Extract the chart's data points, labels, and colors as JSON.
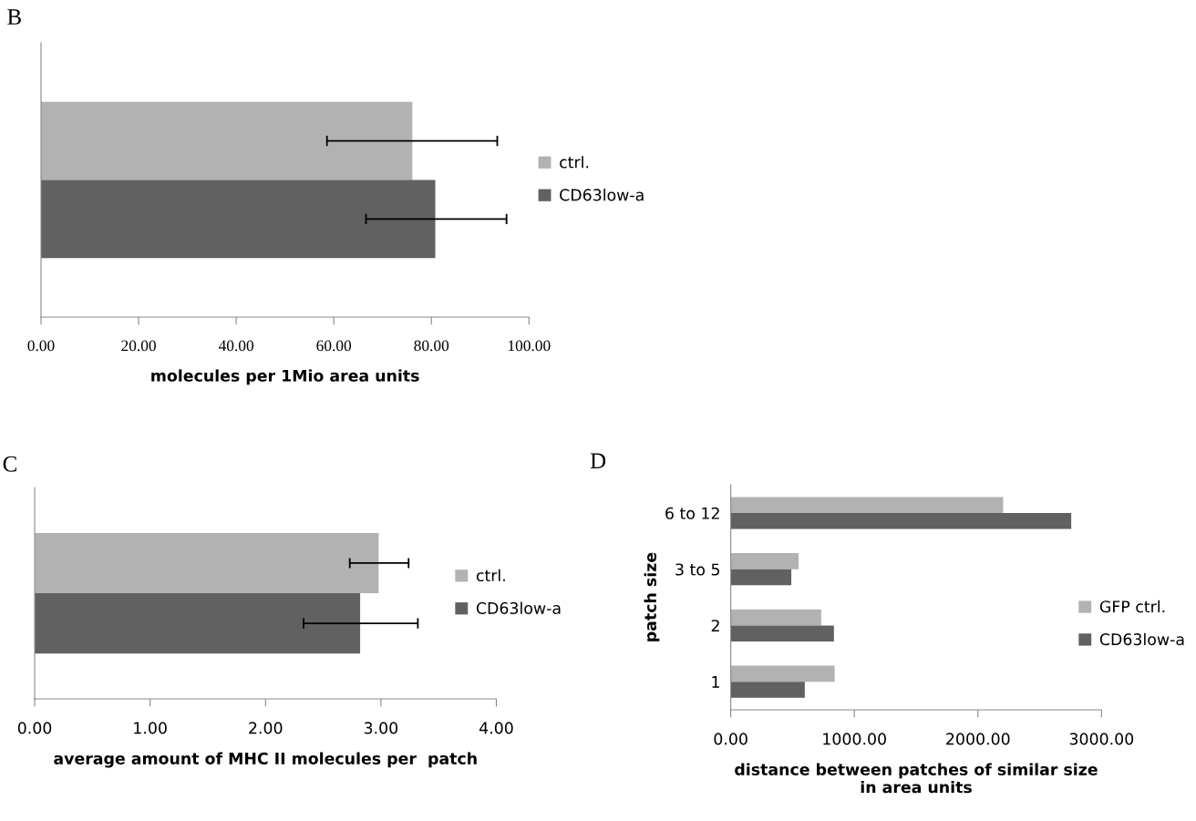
{
  "chart_data": [
    {
      "type": "bar",
      "orientation": "horizontal",
      "title": "B",
      "xlabel": "molecules per 1Mio area units",
      "categories": [
        null
      ],
      "series": [
        {
          "name": "ctrl.",
          "color": "#b2b2b2",
          "values": [
            76.1
          ],
          "errors": [
            [
              58.6,
              93.5
            ]
          ]
        },
        {
          "name": "CD63low-a",
          "color": "#616161",
          "values": [
            80.8
          ],
          "errors": [
            [
              66.6,
              95.4
            ]
          ]
        }
      ],
      "xlim": [
        0,
        100
      ],
      "xticks": [
        {
          "value": 0,
          "label": "0.00"
        },
        {
          "value": 20,
          "label": "20.00"
        },
        {
          "value": 40,
          "label": "40.00"
        },
        {
          "value": 60,
          "label": "60.00"
        },
        {
          "value": 80,
          "label": "80.00"
        },
        {
          "value": 100,
          "label": "100.00"
        }
      ],
      "grid": false,
      "legend": "right"
    },
    {
      "type": "bar",
      "orientation": "horizontal",
      "title": "C",
      "xlabel": "average amount of MHC II molecules per  patch",
      "categories": [
        null
      ],
      "series": [
        {
          "name": "ctrl.",
          "color": "#b2b2b2",
          "values": [
            2.98
          ],
          "errors": [
            [
              2.73,
              3.24
            ]
          ]
        },
        {
          "name": "CD63low-a",
          "color": "#616161",
          "values": [
            2.82
          ],
          "errors": [
            [
              2.33,
              3.32
            ]
          ]
        }
      ],
      "xlim": [
        0,
        4
      ],
      "xticks": [
        {
          "value": 0,
          "label": "0.00"
        },
        {
          "value": 1,
          "label": "1.00"
        },
        {
          "value": 2,
          "label": "2.00"
        },
        {
          "value": 3,
          "label": "3.00"
        },
        {
          "value": 4,
          "label": "4.00"
        }
      ],
      "grid": false,
      "legend": "right"
    },
    {
      "type": "bar",
      "orientation": "horizontal",
      "title": "D",
      "xlabel": "distance between patches of similar size\nin area units",
      "ylabel": "patch size",
      "categories": [
        "6 to 12",
        "3 to 5",
        "2",
        "1"
      ],
      "series": [
        {
          "name": "GFP ctrl.",
          "color": "#b2b2b2",
          "values": [
            2204,
            549,
            732,
            841
          ]
        },
        {
          "name": "CD63low-a",
          "color": "#616161",
          "values": [
            2755,
            490,
            835,
            599
          ]
        }
      ],
      "xlim": [
        0,
        3000
      ],
      "xticks": [
        {
          "value": 0,
          "label": "0.00"
        },
        {
          "value": 1000,
          "label": "1000.00"
        },
        {
          "value": 2000,
          "label": "2000.00"
        },
        {
          "value": 3000,
          "label": "3000.00"
        }
      ],
      "grid": false,
      "legend": "right"
    }
  ]
}
